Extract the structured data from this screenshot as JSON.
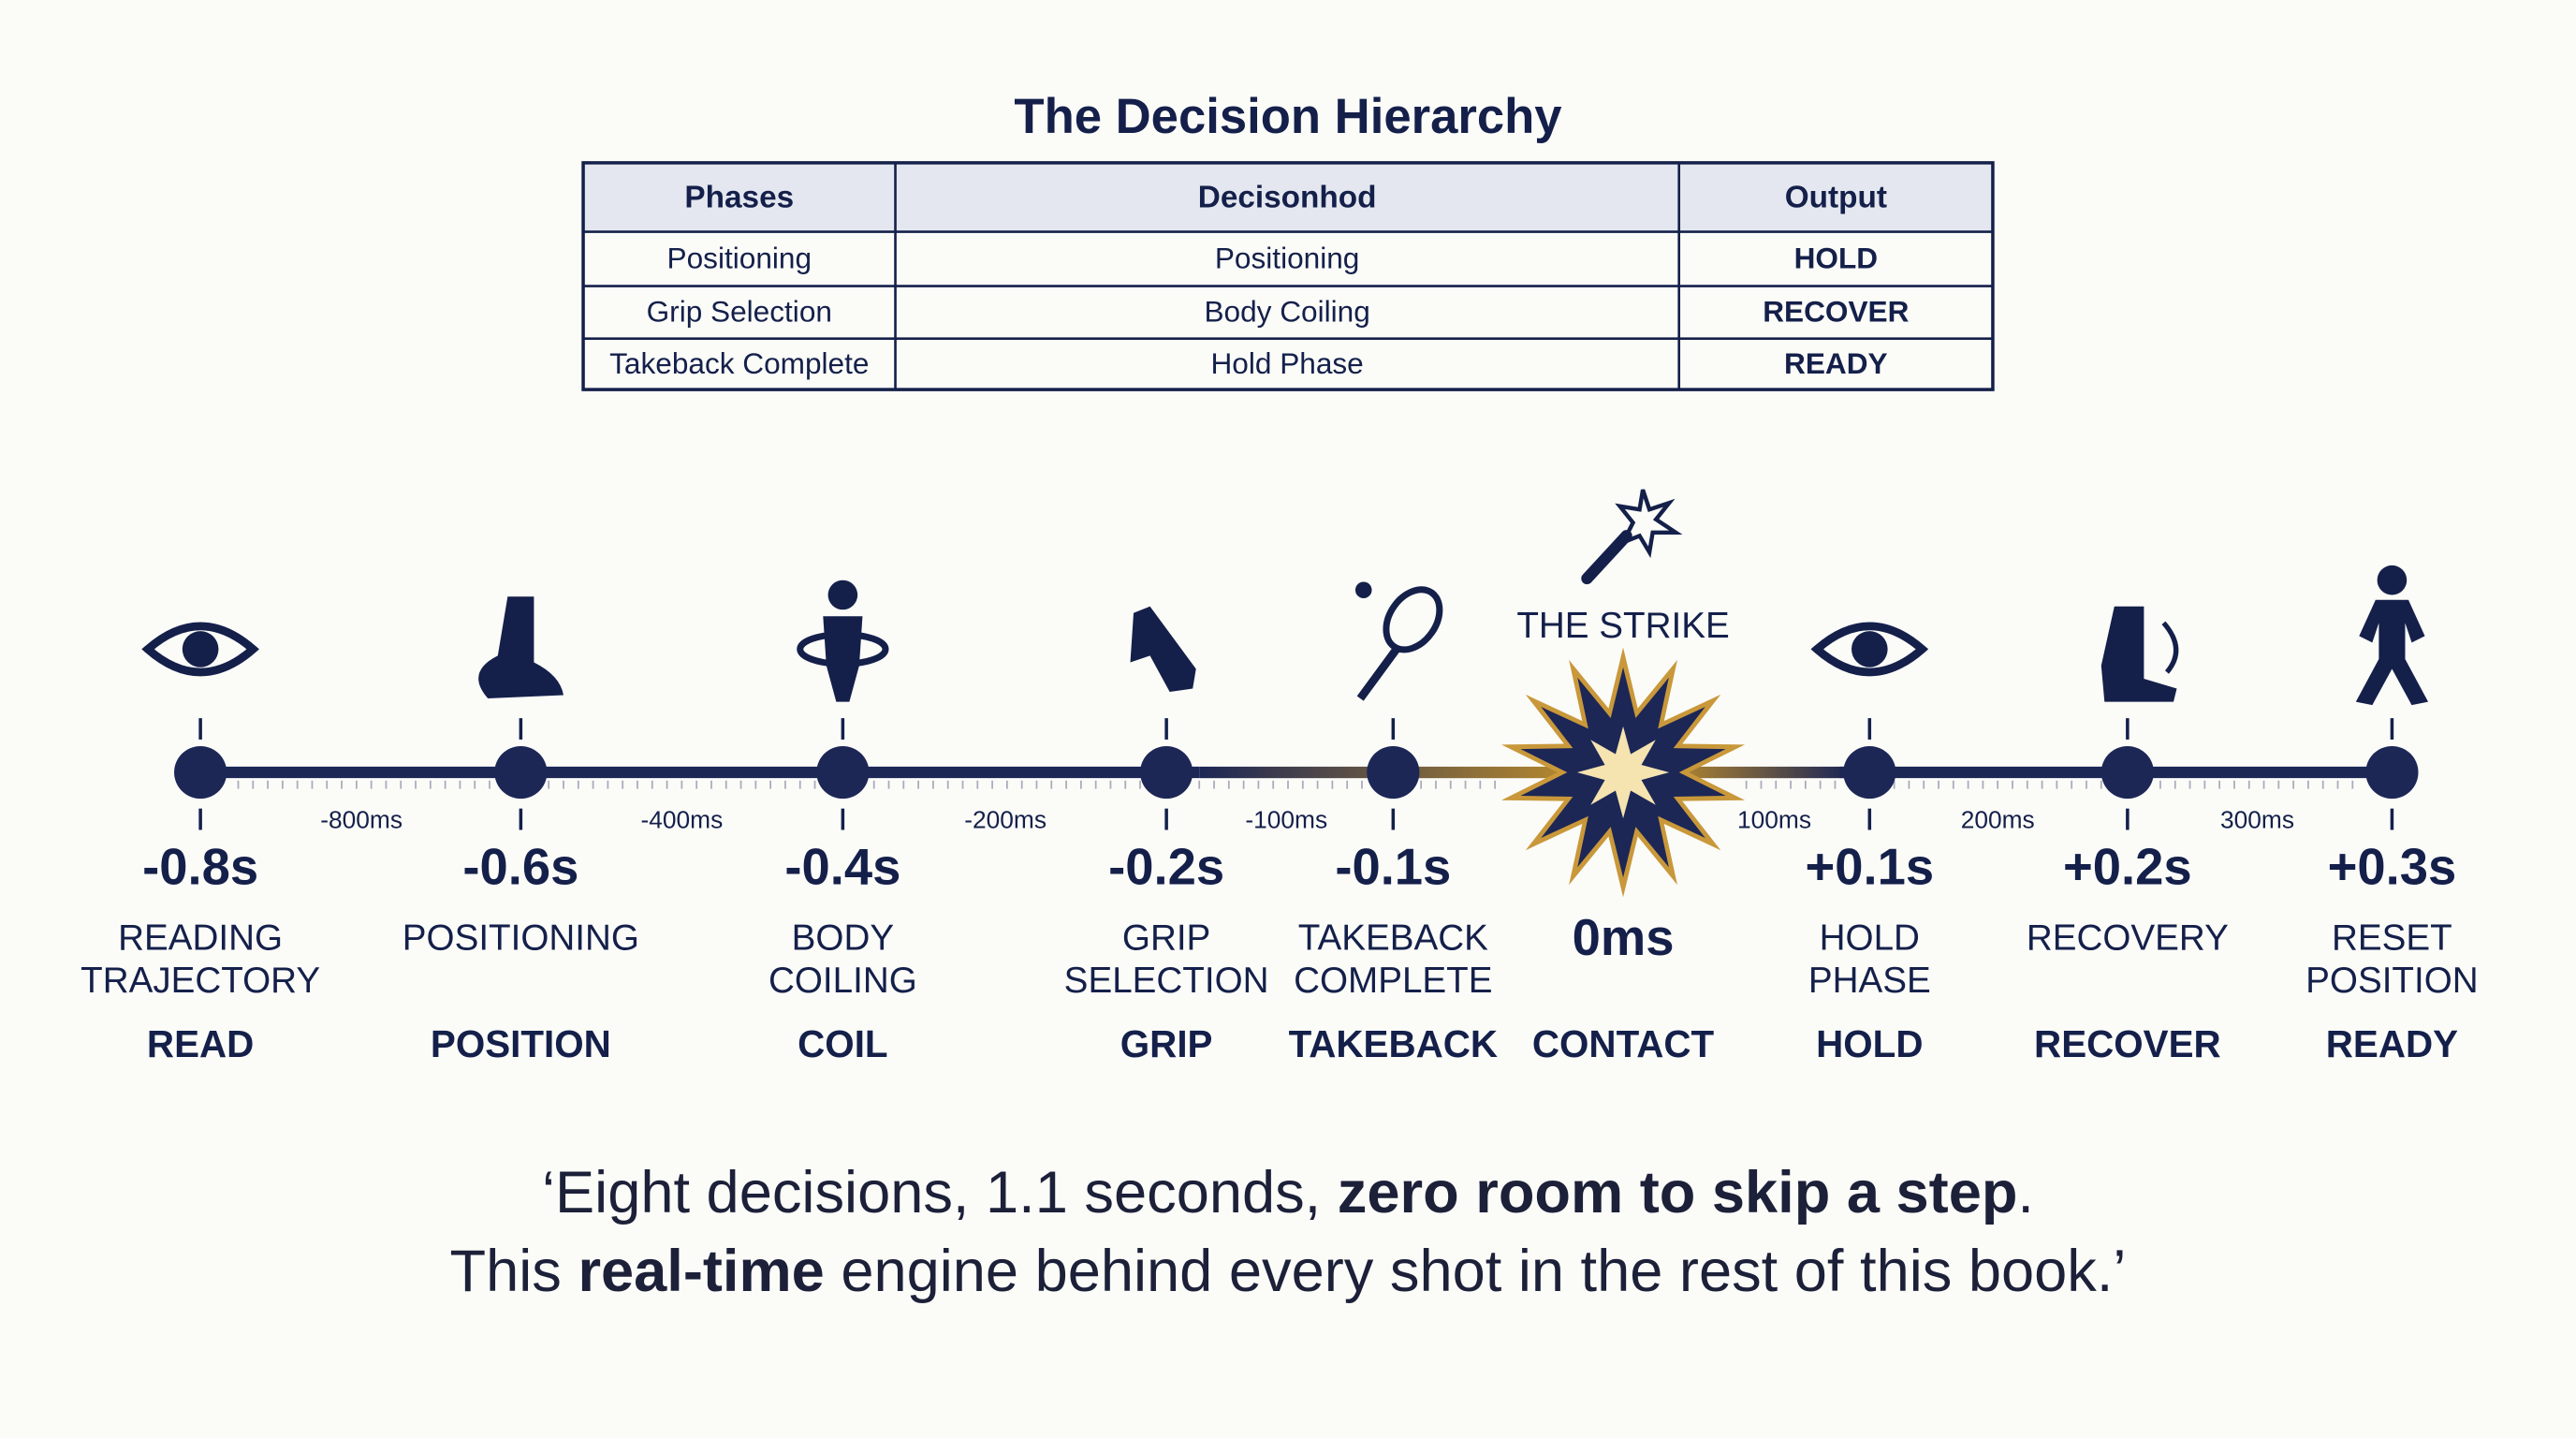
{
  "title": "The Decision Hierarchy",
  "table": {
    "header": [
      "Phases",
      "Decisonhod",
      "Output"
    ],
    "rows": [
      [
        "Positioning",
        "Positioning",
        "HOLD"
      ],
      [
        "Grip Selection",
        "Body Coiling",
        "RECOVER"
      ],
      [
        "Takeback Complete",
        "Hold Phase",
        "READY"
      ]
    ]
  },
  "timeline": {
    "steps": [
      {
        "time": "-0.8s",
        "label": [
          "READING",
          "TRAJECTORY"
        ],
        "keyword": "READ"
      },
      {
        "time": "-0.6s",
        "label": [
          "POSITIONING"
        ],
        "keyword": "POSITION"
      },
      {
        "time": "-0.4s",
        "label": [
          "BODY",
          "COILING"
        ],
        "keyword": "COIL"
      },
      {
        "time": "-0.2s",
        "label": [
          "GRIP",
          "SELECTION"
        ],
        "keyword": "GRIP"
      },
      {
        "time": "-0.1s",
        "label": [
          "TAKEBACK",
          "COMPLETE"
        ],
        "keyword": "TAKEBACK"
      },
      {
        "time": "+0.1s",
        "label": [
          "HOLD",
          "PHASE"
        ],
        "keyword": "HOLD"
      },
      {
        "time": "+0.2s",
        "label": [
          "RECOVERY"
        ],
        "keyword": "RECOVER"
      },
      {
        "time": "+0.3s",
        "label": [
          "RESET",
          "POSITION"
        ],
        "keyword": "READY"
      }
    ],
    "contact": {
      "caption": "THE STRIKE",
      "time": "0ms",
      "keyword": "CONTACT"
    },
    "intervals": [
      "-800ms",
      "-400ms",
      "-200ms",
      "-100ms",
      "100ms",
      "200ms",
      "300ms"
    ]
  },
  "quote": {
    "lines": [
      [
        {
          "text": "‘Eight decisions, 1.1 seconds, "
        },
        {
          "text": "zero room to skip a step",
          "bold": true
        },
        {
          "text": "."
        }
      ],
      [
        {
          "text": "This "
        },
        {
          "text": "real-time",
          "bold": true
        },
        {
          "text": " engine behind every shot in the rest of this book.’"
        }
      ]
    ]
  }
}
